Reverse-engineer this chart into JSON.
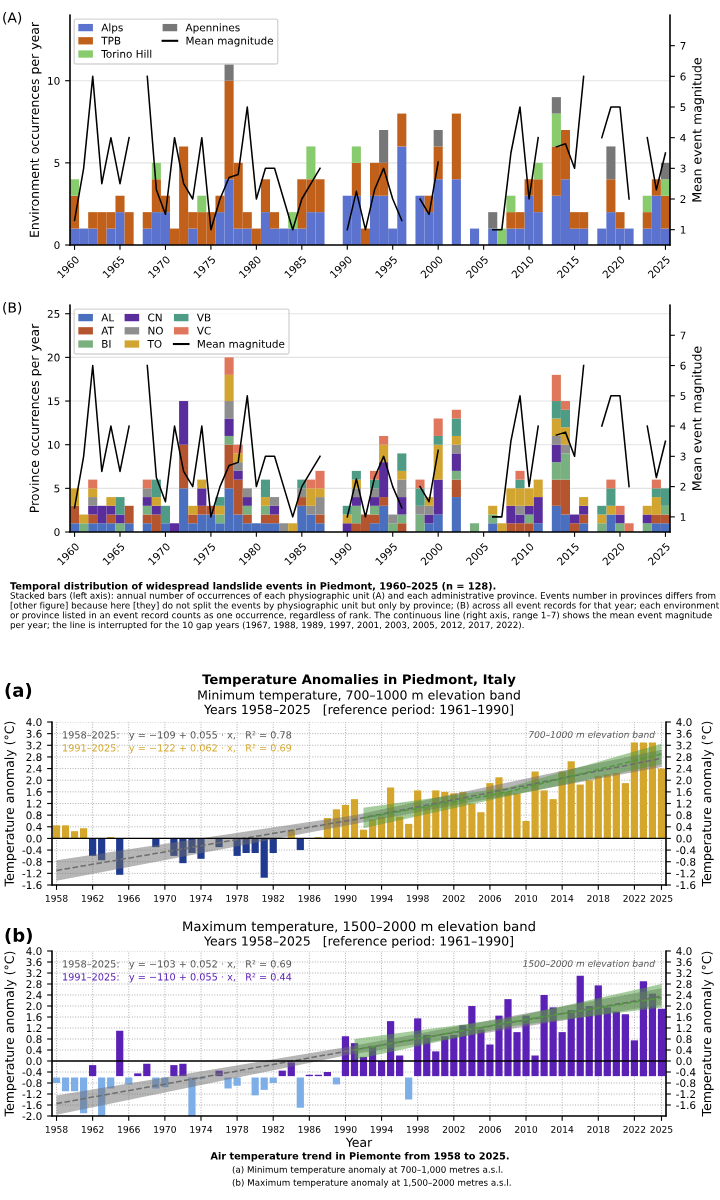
{
  "chart_data": [
    {
      "type": "bar",
      "stacked": true,
      "annotations": [
        "(A)"
      ],
      "ylabel": "Environment occurrences per year",
      "y2label": "Mean event magnitude",
      "legend": "top left",
      "grid": "y",
      "xlim": [
        1959.5,
        2025.5
      ],
      "xticks": [
        1960,
        1965,
        1970,
        1975,
        1980,
        1985,
        1990,
        1995,
        2000,
        2005,
        2010,
        2015,
        2020,
        2025
      ],
      "ylim": [
        0,
        14
      ],
      "yticks": [
        0,
        5,
        10
      ],
      "y2lim": [
        0.5,
        8
      ],
      "y2ticks": [
        1,
        2,
        3,
        4,
        5,
        6,
        7
      ],
      "x": [
        1960,
        1961,
        1962,
        1963,
        1964,
        1965,
        1966,
        1967,
        1968,
        1969,
        1970,
        1971,
        1972,
        1973,
        1974,
        1975,
        1976,
        1977,
        1978,
        1979,
        1980,
        1981,
        1982,
        1983,
        1984,
        1985,
        1986,
        1987,
        1988,
        1989,
        1990,
        1991,
        1992,
        1993,
        1994,
        1995,
        1996,
        1997,
        1998,
        1999,
        2000,
        2001,
        2002,
        2003,
        2004,
        2005,
        2006,
        2007,
        2008,
        2009,
        2010,
        2011,
        2012,
        2013,
        2014,
        2015,
        2016,
        2017,
        2018,
        2019,
        2020,
        2021,
        2022,
        2023,
        2024,
        2025
      ],
      "series": [
        {
          "name": "Alps",
          "color": "#5b73cf",
          "values": [
            1,
            1,
            1,
            0,
            1,
            2,
            0,
            0,
            1,
            2,
            2,
            0,
            0,
            1,
            0,
            0,
            2,
            4,
            1,
            1,
            0,
            2,
            1,
            1,
            1,
            1,
            2,
            2,
            0,
            0,
            3,
            3,
            0,
            3,
            3,
            1,
            6,
            0,
            3,
            2,
            4,
            0,
            4,
            0,
            1,
            0,
            1,
            0,
            1,
            1,
            3,
            2,
            0,
            3,
            4,
            1,
            1,
            0,
            1,
            2,
            1,
            1,
            0,
            1,
            3,
            1
          ]
        },
        {
          "name": "TPB",
          "color": "#c0601a",
          "values": [
            2,
            0,
            1,
            2,
            1,
            1,
            2,
            0,
            1,
            2,
            1,
            1,
            6,
            1,
            2,
            2,
            1,
            6,
            4,
            1,
            1,
            2,
            1,
            0,
            0,
            3,
            2,
            2,
            0,
            0,
            0,
            2,
            1,
            2,
            2,
            0,
            2,
            0,
            0,
            1,
            2,
            0,
            4,
            0,
            0,
            0,
            0,
            0,
            1,
            1,
            1,
            2,
            0,
            3,
            3,
            1,
            1,
            0,
            0,
            2,
            1,
            0,
            0,
            1,
            1,
            2
          ]
        },
        {
          "name": "Torino Hill",
          "color": "#88cc6e",
          "values": [
            1,
            0,
            0,
            0,
            0,
            0,
            0,
            0,
            0,
            1,
            0,
            0,
            0,
            0,
            1,
            0,
            0,
            0,
            0,
            0,
            0,
            0,
            0,
            0,
            1,
            0,
            2,
            0,
            0,
            0,
            0,
            1,
            0,
            0,
            0,
            0,
            0,
            0,
            0,
            0,
            0,
            0,
            0,
            0,
            0,
            0,
            0,
            1,
            1,
            0,
            0,
            1,
            0,
            2,
            0,
            0,
            0,
            0,
            0,
            0,
            0,
            0,
            0,
            1,
            0,
            1
          ]
        },
        {
          "name": "Apennines",
          "color": "#777777",
          "values": [
            0,
            0,
            0,
            0,
            0,
            0,
            0,
            0,
            0,
            0,
            0,
            0,
            0,
            0,
            0,
            0,
            0,
            1,
            0,
            0,
            0,
            0,
            0,
            0,
            0,
            0,
            0,
            0,
            0,
            0,
            0,
            0,
            0,
            0,
            2,
            0,
            0,
            0,
            0,
            0,
            1,
            0,
            0,
            0,
            0,
            0,
            1,
            0,
            0,
            0,
            0,
            0,
            0,
            1,
            0,
            0,
            0,
            0,
            0,
            2,
            0,
            0,
            0,
            0,
            0,
            1
          ]
        },
        {
          "name": "Mean magnitude",
          "type": "line",
          "axis": "y2",
          "color": "#000000",
          "line_style": "solid",
          "values": [
            1.3,
            3,
            6,
            2.5,
            4,
            2.5,
            4,
            null,
            6,
            2.3,
            1.5,
            4,
            2.5,
            2,
            4,
            1,
            2,
            2.7,
            2.8,
            5,
            2,
            3,
            3,
            2,
            1,
            2,
            2.5,
            3,
            null,
            null,
            1,
            2.25,
            1,
            2.3,
            3,
            2,
            1.3,
            null,
            2,
            1.5,
            3.2,
            null,
            null,
            null,
            null,
            null,
            1,
            1,
            3.5,
            5,
            2,
            4,
            null,
            3.7,
            3.8,
            3,
            6,
            null,
            4,
            5,
            5,
            2,
            null,
            4,
            2.3,
            3.5
          ]
        }
      ]
    },
    {
      "type": "bar",
      "stacked": true,
      "ylabel": "Province occurrences per year",
      "y2label": "Mean event magnitude",
      "legend": "top left",
      "grid": "y",
      "annotations": [
        "(B)",
        "Temporal distribution of widespread landslide events in Piedmont, 1960–2025 (n = 128).",
        "Stacked bars (left axis): annual number of occurrences of each physiographic unit (A) and each administrative province. Events number in provinces differs from [other figure] because here [they] do not split the events by physiographic unit but only by province; (B) across all event records for that year; each environment or province listed in an event record counts as one occurrence, regardless of rank. The continuous line (right axis, range 1–7) shows the mean event magnitude per year; the line is interrupted for the 10 gap years (1967, 1988, 1989, 1997, 2001, 2003, 2005, 2012, 2017, 2022)."
      ],
      "xlim": [
        1959.5,
        2025.5
      ],
      "xticks": [
        1960,
        1965,
        1970,
        1975,
        1980,
        1985,
        1990,
        1995,
        2000,
        2005,
        2010,
        2015,
        2020,
        2025
      ],
      "ylim": [
        0,
        26
      ],
      "yticks": [
        0,
        5,
        10,
        15,
        20,
        25
      ],
      "y2lim": [
        0.5,
        8
      ],
      "y2ticks": [
        1,
        2,
        3,
        4,
        5,
        6,
        7
      ],
      "x": [
        1960,
        1961,
        1962,
        1963,
        1964,
        1965,
        1966,
        1967,
        1968,
        1969,
        1970,
        1971,
        1972,
        1973,
        1974,
        1975,
        1976,
        1977,
        1978,
        1979,
        1980,
        1981,
        1982,
        1983,
        1984,
        1985,
        1986,
        1987,
        1988,
        1989,
        1990,
        1991,
        1992,
        1993,
        1994,
        1995,
        1996,
        1997,
        1998,
        1999,
        2000,
        2001,
        2002,
        2003,
        2004,
        2005,
        2006,
        2007,
        2008,
        2009,
        2010,
        2011,
        2012,
        2013,
        2014,
        2015,
        2016,
        2017,
        2018,
        2019,
        2020,
        2021,
        2022,
        2023,
        2024,
        2025
      ],
      "series": [
        {
          "name": "AL",
          "color": "#4a6fbf",
          "values": [
            1,
            0,
            1,
            1,
            1,
            0,
            1,
            0,
            1,
            0,
            1,
            0,
            5,
            1,
            2,
            2,
            1,
            5,
            2,
            1,
            1,
            1,
            1,
            0,
            0,
            3,
            2,
            1,
            0,
            0,
            0,
            0,
            0,
            1,
            3,
            0,
            0,
            0,
            0,
            1,
            2,
            0,
            4,
            0,
            0,
            0,
            1,
            0,
            0,
            0,
            0,
            1,
            0,
            3,
            2,
            0,
            1,
            0,
            0,
            2,
            0,
            0,
            0,
            0,
            1,
            1
          ]
        },
        {
          "name": "AT",
          "color": "#b5552f",
          "values": [
            2,
            0,
            1,
            0,
            1,
            0,
            2,
            0,
            1,
            2,
            0,
            0,
            5,
            1,
            1,
            1,
            0,
            5,
            4,
            1,
            0,
            1,
            1,
            0,
            0,
            1,
            0,
            1,
            0,
            0,
            0,
            1,
            2,
            1,
            1,
            0,
            1,
            0,
            0,
            0,
            0,
            0,
            2,
            0,
            0,
            0,
            0,
            0,
            1,
            1,
            1,
            0,
            0,
            3,
            4,
            1,
            1,
            0,
            0,
            0,
            0,
            0,
            0,
            0,
            1,
            1
          ]
        },
        {
          "name": "BI",
          "color": "#79b07f",
          "values": [
            0,
            1,
            0,
            0,
            0,
            1,
            0,
            0,
            1,
            0,
            0,
            0,
            0,
            0,
            0,
            0,
            1,
            1,
            0,
            1,
            0,
            1,
            0,
            0,
            0,
            0,
            0,
            0,
            0,
            0,
            0,
            2,
            0,
            1,
            0,
            1,
            1,
            0,
            2,
            0,
            0,
            0,
            1,
            0,
            1,
            0,
            1,
            0,
            0,
            0,
            1,
            0,
            0,
            2,
            3,
            0,
            0,
            0,
            1,
            0,
            1,
            0,
            0,
            1,
            0,
            1
          ]
        },
        {
          "name": "CN",
          "color": "#5a2d9c",
          "values": [
            0,
            0,
            1,
            2,
            1,
            1,
            0,
            0,
            1,
            1,
            0,
            1,
            5,
            0,
            2,
            0,
            0,
            2,
            1,
            1,
            0,
            0,
            1,
            0,
            0,
            0,
            0,
            0,
            0,
            0,
            1,
            1,
            0,
            1,
            4,
            0,
            2,
            0,
            0,
            1,
            4,
            0,
            2,
            0,
            0,
            0,
            0,
            0,
            2,
            1,
            1,
            3,
            0,
            2,
            0,
            1,
            1,
            0,
            0,
            0,
            1,
            0,
            0,
            1,
            0,
            0
          ]
        },
        {
          "name": "NO",
          "color": "#8e8e8e",
          "values": [
            0,
            0,
            1,
            0,
            0,
            0,
            0,
            0,
            1,
            0,
            0,
            0,
            0,
            0,
            0,
            0,
            0,
            2,
            1,
            1,
            0,
            0,
            1,
            1,
            0,
            1,
            1,
            2,
            0,
            0,
            0,
            1,
            0,
            1,
            0,
            1,
            2,
            0,
            1,
            1,
            0,
            0,
            1,
            0,
            0,
            0,
            0,
            0,
            0,
            1,
            0,
            0,
            0,
            1,
            1,
            0,
            0,
            0,
            0,
            0,
            0,
            0,
            0,
            0,
            0,
            0
          ]
        },
        {
          "name": "TO",
          "color": "#d1a530",
          "values": [
            2,
            1,
            1,
            0,
            1,
            0,
            0,
            0,
            0,
            1,
            0,
            0,
            0,
            1,
            1,
            0,
            1,
            3,
            1,
            0,
            0,
            1,
            0,
            0,
            1,
            0,
            2,
            1,
            0,
            0,
            1,
            1,
            0,
            0,
            2,
            0,
            1,
            0,
            0,
            1,
            4,
            0,
            1,
            0,
            0,
            0,
            1,
            1,
            2,
            2,
            2,
            2,
            0,
            2,
            2,
            0,
            1,
            0,
            1,
            1,
            0,
            0,
            0,
            1,
            2,
            0
          ]
        },
        {
          "name": "VB",
          "color": "#4f9c86",
          "values": [
            0,
            0,
            0,
            0,
            0,
            2,
            0,
            0,
            0,
            2,
            2,
            0,
            0,
            0,
            0,
            0,
            1,
            0,
            0,
            0,
            0,
            2,
            0,
            0,
            0,
            1,
            0,
            0,
            0,
            0,
            1,
            1,
            0,
            1,
            0,
            0,
            2,
            0,
            2,
            0,
            1,
            0,
            2,
            0,
            0,
            0,
            0,
            0,
            0,
            1,
            0,
            0,
            0,
            2,
            2,
            0,
            0,
            0,
            1,
            2,
            0,
            0,
            0,
            0,
            1,
            2
          ]
        },
        {
          "name": "VC",
          "color": "#e0765c",
          "values": [
            0,
            0,
            1,
            0,
            0,
            0,
            0,
            0,
            1,
            0,
            0,
            0,
            0,
            0,
            0,
            0,
            0,
            2,
            1,
            0,
            0,
            0,
            0,
            0,
            0,
            0,
            1,
            2,
            0,
            0,
            0,
            0,
            0,
            1,
            1,
            0,
            0,
            0,
            1,
            0,
            2,
            0,
            1,
            0,
            0,
            0,
            0,
            0,
            0,
            1,
            0,
            0,
            0,
            3,
            1,
            0,
            0,
            0,
            0,
            1,
            1,
            1,
            0,
            0,
            1,
            0
          ]
        },
        {
          "name": "Mean magnitude",
          "type": "line",
          "axis": "y2",
          "color": "#000000",
          "line_style": "solid",
          "values": [
            1.3,
            3,
            6,
            2.5,
            4,
            2.5,
            4,
            null,
            6,
            2.3,
            1.5,
            4,
            2.5,
            2,
            4,
            1,
            2,
            2.7,
            2.8,
            5,
            2,
            3,
            3,
            2,
            1,
            2,
            2.5,
            3,
            null,
            null,
            1,
            2.25,
            1,
            2.3,
            3,
            2,
            1.3,
            null,
            2,
            1.5,
            3.2,
            null,
            null,
            null,
            null,
            null,
            1,
            1,
            3.5,
            5,
            2,
            4,
            null,
            3.7,
            3.8,
            3,
            6,
            null,
            4,
            5,
            5,
            2,
            null,
            4,
            2.3,
            3.5
          ]
        }
      ]
    },
    {
      "type": "bar",
      "title": "Temperature Anomalies in Piedmont, Italy",
      "subtitle": "Minimum temperature, 700–1000 m elevation band\nYears 1958–2025   [reference period: 1961–1990]",
      "ylabel": "Temperature anomaly (°C)",
      "y2label": "Temperature anomaly (°C)",
      "grid": true,
      "annotations": [
        "(a)",
        "1958–2025:   y = −109 + 0.055 · x,   R² = 0.78",
        "1991–2025:   y = −122 + 0.062 · x,   R² = 0.69",
        "700–1000 m elevation band"
      ],
      "xlim": [
        1957.5,
        2025.5
      ],
      "xticks": [
        1958,
        1962,
        1966,
        1970,
        1974,
        1978,
        1982,
        1986,
        1990,
        1994,
        1998,
        2002,
        2006,
        2010,
        2014,
        2018,
        2022,
        2025
      ],
      "ylim": [
        -1.6,
        4.0
      ],
      "yticks": [
        -1.6,
        -1.2,
        -0.8,
        -0.4,
        {
          "value": 0,
          "label": "0.0"
        },
        0.4,
        0.8,
        1.2,
        1.6,
        {
          "value": 2,
          "label": "2.0"
        },
        2.4,
        2.8,
        3.2,
        3.6,
        {
          "value": 4,
          "label": "4.0"
        }
      ],
      "y2lim": [
        -1.6,
        4.0
      ],
      "y2ticks": [
        -1.6,
        -1.2,
        -0.8,
        -0.4,
        {
          "value": 0,
          "label": "0.0"
        },
        0.4,
        0.8,
        1.2,
        1.6,
        {
          "value": 2,
          "label": "2.0"
        },
        2.4,
        2.8,
        3.2,
        3.6,
        {
          "value": 4,
          "label": "4.0"
        }
      ],
      "ref_lines": [
        {
          "axis": "y",
          "value": 0,
          "color": "#000000"
        }
      ],
      "x": [
        1958,
        1959,
        1960,
        1961,
        1962,
        1963,
        1964,
        1965,
        1966,
        1967,
        1968,
        1969,
        1970,
        1971,
        1972,
        1973,
        1974,
        1975,
        1976,
        1977,
        1978,
        1979,
        1980,
        1981,
        1982,
        1983,
        1984,
        1985,
        1986,
        1987,
        1988,
        1989,
        1990,
        1991,
        1992,
        1993,
        1994,
        1995,
        1996,
        1997,
        1998,
        1999,
        2000,
        2001,
        2002,
        2003,
        2004,
        2005,
        2006,
        2007,
        2008,
        2009,
        2010,
        2011,
        2012,
        2013,
        2014,
        2015,
        2016,
        2017,
        2018,
        2019,
        2020,
        2021,
        2022,
        2023,
        2024,
        2025
      ],
      "series": [
        {
          "color": "#d4a72c",
          "values": [
            0.45,
            0.45,
            0.25,
            0.35,
            null,
            null,
            0.05,
            null,
            null,
            null,
            null,
            null,
            null,
            null,
            null,
            null,
            null,
            null,
            null,
            null,
            null,
            null,
            null,
            null,
            null,
            null,
            0.3,
            null,
            null,
            0.05,
            0.7,
            1.0,
            1.15,
            1.35,
            0.3,
            0.65,
            0.75,
            1.75,
            0.75,
            0.5,
            1.65,
            1.1,
            1.65,
            1.6,
            1.55,
            1.6,
            1.2,
            0.9,
            1.9,
            2.1,
            1.6,
            1.55,
            0.6,
            2.3,
            1.65,
            1.35,
            2.3,
            2.65,
            1.85,
            2.0,
            2.15,
            2.2,
            2.25,
            1.9,
            3.3,
            3.3,
            3.3,
            2.4
          ]
        },
        {
          "color": "#1f3a8f",
          "values": [
            null,
            null,
            null,
            null,
            -0.6,
            -0.75,
            null,
            -1.25,
            null,
            null,
            null,
            -0.3,
            null,
            -0.6,
            -0.85,
            -0.5,
            -0.7,
            null,
            -0.3,
            null,
            -0.6,
            -0.5,
            -0.5,
            -1.35,
            -0.5,
            null,
            null,
            -0.4,
            null,
            null,
            null,
            null,
            null,
            null,
            null,
            null,
            null,
            null,
            null,
            null,
            null,
            null,
            null,
            null,
            null,
            null,
            null,
            null,
            null,
            null,
            null,
            null,
            null,
            null,
            null,
            null,
            null,
            null,
            null,
            null,
            null,
            null,
            null,
            null,
            null,
            null,
            null,
            null
          ]
        },
        {
          "type": "line",
          "color": "#6e6e6e",
          "line_style": "dashed",
          "x": [
            1958,
            1991,
            2025
          ],
          "values": [
            -1.1,
            0.65,
            2.75
          ],
          "lower": [
            -1.45,
            0.5,
            2.45
          ],
          "upper": [
            -0.75,
            0.8,
            3.05
          ]
        },
        {
          "type": "line",
          "color": "#4f9a3e",
          "line_style": "dashed",
          "x": [
            1992,
            2008,
            2025
          ],
          "values": [
            0.7,
            1.6,
            2.9
          ],
          "lower": [
            0.35,
            1.45,
            2.55
          ],
          "upper": [
            1.05,
            1.75,
            3.25
          ]
        }
      ]
    },
    {
      "type": "bar",
      "title": "Maximum temperature, 1500–2000 m elevation band",
      "subtitle": "Years 1958–2025   [reference period: 1961–1990]",
      "xlabel": "Year",
      "ylabel": "Temperature anomaly (°C)",
      "y2label": "Temperature anomaly (°C)",
      "grid": true,
      "annotations": [
        "(b)",
        "1958–2025:   y = −103 + 0.052 · x,   R² = 0.69",
        "1991–2025:   y = −110 + 0.055 · x,   R² = 0.44",
        "1500–2000 m elevation band",
        "Air temperature trend in Piemonte from 1958 to 2025.",
        "(a) Minimum temperature anomaly at 700–1,000 metres a.s.l.",
        "(b) Maximum temperature anomaly at 1,500–2000 metres a.s.l."
      ],
      "xlim": [
        1957.5,
        2025.5
      ],
      "xticks": [
        1958,
        1962,
        1966,
        1970,
        1974,
        1978,
        1982,
        1986,
        1990,
        1994,
        1998,
        2002,
        2006,
        2010,
        2014,
        2018,
        2022,
        2025
      ],
      "ylim": [
        -2.0,
        4.0
      ],
      "yticks": [
        {
          "value": -2,
          "label": "-2.0"
        },
        -1.6,
        -1.2,
        -0.8,
        -0.4,
        {
          "value": 0,
          "label": "0.0"
        },
        0.4,
        0.8,
        1.2,
        1.6,
        {
          "value": 2,
          "label": "2.0"
        },
        2.4,
        2.8,
        3.2,
        3.6,
        {
          "value": 4,
          "label": "4.0"
        }
      ],
      "y2lim": [
        -2.0,
        4.0
      ],
      "y2ticks": [
        -1.6,
        -1.2,
        -0.8,
        -0.4,
        {
          "value": 0,
          "label": "0.0"
        },
        0.4,
        0.8,
        1.2,
        1.6,
        {
          "value": 2,
          "label": "2.0"
        },
        2.4,
        2.8,
        3.2,
        3.6,
        {
          "value": 4,
          "label": "4.0"
        }
      ],
      "ref_lines": [
        {
          "axis": "y",
          "value": 0,
          "color": "#000000"
        }
      ],
      "x": [
        1958,
        1959,
        1960,
        1961,
        1962,
        1963,
        1964,
        1965,
        1966,
        1967,
        1968,
        1969,
        1970,
        1971,
        1972,
        1973,
        1974,
        1975,
        1976,
        1977,
        1978,
        1979,
        1980,
        1981,
        1982,
        1983,
        1984,
        1985,
        1986,
        1987,
        1988,
        1989,
        1990,
        1991,
        1992,
        1993,
        1994,
        1995,
        1996,
        1997,
        1998,
        1999,
        2000,
        2001,
        2002,
        2003,
        2004,
        2005,
        2006,
        2007,
        2008,
        2009,
        2010,
        2011,
        2012,
        2013,
        2014,
        2015,
        2016,
        2017,
        2018,
        2019,
        2020,
        2021,
        2022,
        2023,
        2024,
        2025
      ],
      "series": [
        {
          "color": "#5b21b6",
          "base": [
            null,
            null,
            null,
            null,
            -0.55,
            null,
            null,
            -0.55,
            null,
            -0.55,
            -0.55,
            null,
            null,
            -0.55,
            -0.55,
            null,
            null,
            null,
            -0.55,
            null,
            null,
            null,
            null,
            null,
            null,
            -0.55,
            -0.55,
            null,
            -0.55,
            -0.55,
            -0.55,
            null,
            -0.55,
            -0.55,
            -0.55,
            -0.55,
            -0.55,
            -0.55,
            -0.55,
            null,
            -0.55,
            -0.55,
            -0.55,
            -0.55,
            -0.55,
            -0.55,
            -0.55,
            -0.55,
            -0.55,
            -0.55,
            -0.55,
            -0.55,
            -0.55,
            -0.55,
            -0.55,
            -0.55,
            -0.55,
            -0.55,
            -0.55,
            -0.55,
            -0.55,
            -0.55,
            -0.55,
            -0.55,
            -0.55,
            -0.55,
            -0.55,
            -0.55
          ],
          "values": [
            null,
            null,
            null,
            null,
            0.4,
            null,
            null,
            1.65,
            null,
            0.1,
            0.45,
            null,
            null,
            0.4,
            0.45,
            null,
            null,
            null,
            0.2,
            null,
            null,
            null,
            null,
            null,
            null,
            0.2,
            0.5,
            null,
            0.05,
            0.05,
            0.15,
            null,
            1.45,
            1.2,
            0.7,
            1.1,
            0.55,
            2.0,
            0.75,
            null,
            2.1,
            1.5,
            0.9,
            1.45,
            1.5,
            1.85,
            2.55,
            1.7,
            1.15,
            2.2,
            2.8,
            1.6,
            2.2,
            0.75,
            2.95,
            2.5,
            1.6,
            2.4,
            3.65,
            2.55,
            3.3,
            2.5,
            2.35,
            2.25,
            1.3,
            3.45,
            3.0,
            2.45
          ]
        },
        {
          "color": "#7eaee8",
          "base": [
            -0.6,
            -0.6,
            -0.6,
            -0.6,
            null,
            -0.6,
            -0.6,
            null,
            -0.6,
            null,
            null,
            -0.6,
            -0.6,
            null,
            null,
            -0.6,
            -0.6,
            null,
            null,
            -0.6,
            -0.6,
            null,
            -0.6,
            -0.6,
            -0.6,
            null,
            null,
            -0.6,
            null,
            null,
            null,
            -0.6,
            null,
            null,
            null,
            null,
            null,
            null,
            null,
            -0.6,
            null,
            null,
            null,
            null,
            null,
            null,
            null,
            null,
            null,
            null,
            null,
            null,
            null,
            null,
            null,
            null,
            null,
            null,
            null,
            null,
            null,
            null,
            null,
            null,
            null,
            null,
            null,
            null
          ],
          "values": [
            -0.2,
            -0.5,
            -0.5,
            -1.3,
            null,
            -1.4,
            -0.4,
            null,
            -0.25,
            null,
            null,
            -0.4,
            -0.35,
            null,
            null,
            -1.4,
            -0.05,
            null,
            null,
            -0.4,
            -0.3,
            null,
            -0.65,
            -0.45,
            -0.2,
            null,
            null,
            -1.1,
            null,
            null,
            null,
            -0.25,
            null,
            null,
            null,
            null,
            null,
            null,
            null,
            -0.8,
            null,
            null,
            null,
            null,
            null,
            null,
            null,
            null,
            null,
            null,
            null,
            null,
            null,
            null,
            null,
            null,
            null,
            null,
            null,
            null,
            null,
            null,
            null,
            null,
            null,
            null,
            null,
            null
          ]
        },
        {
          "type": "line",
          "color": "#6e6e6e",
          "line_style": "dashed",
          "x": [
            1958,
            1990,
            2025
          ],
          "values": [
            -1.55,
            0.35,
            2.35
          ],
          "lower": [
            -1.95,
            0.2,
            2.05
          ],
          "upper": [
            -1.25,
            0.5,
            2.65
          ]
        },
        {
          "type": "line",
          "color": "#4f9a3e",
          "line_style": "dashed",
          "x": [
            1991,
            2008,
            2025
          ],
          "values": [
            0.4,
            1.4,
            2.3
          ],
          "lower": [
            0.05,
            1.25,
            1.95
          ],
          "upper": [
            0.8,
            1.55,
            2.8
          ]
        }
      ]
    }
  ]
}
